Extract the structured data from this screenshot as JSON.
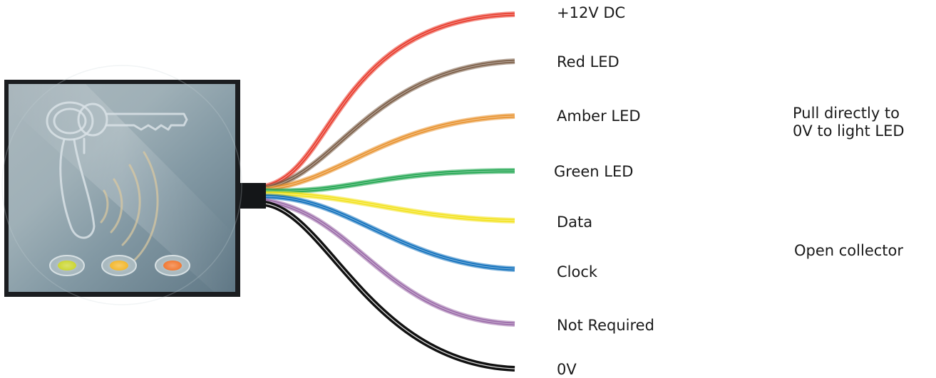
{
  "wires": [
    {
      "label": "+12V DC",
      "color": "#e8392a"
    },
    {
      "label": "Red LED",
      "color": "#7a5c45"
    },
    {
      "label": "Amber LED",
      "color": "#e8922e"
    },
    {
      "label": "Green LED",
      "color": "#1fa54f"
    },
    {
      "label": "Data",
      "color": "#f3e21c"
    },
    {
      "label": "Clock",
      "color": "#0e6fbc"
    },
    {
      "label": "Not Required",
      "color": "#9a6aa8"
    },
    {
      "label": "0V",
      "color": "#111111"
    }
  ],
  "notes": {
    "led_note": {
      "line1": "Pull directly to",
      "line2": "0V to light LED"
    },
    "collector_note": "Open collector"
  },
  "reader": {
    "leds": [
      {
        "name": "green",
        "color": "#c6d21c"
      },
      {
        "name": "amber",
        "color": "#f2b018"
      },
      {
        "name": "red",
        "color": "#f06a1c"
      }
    ],
    "panel_color": "#8fa3ad",
    "frame_color": "#1b1d20"
  }
}
